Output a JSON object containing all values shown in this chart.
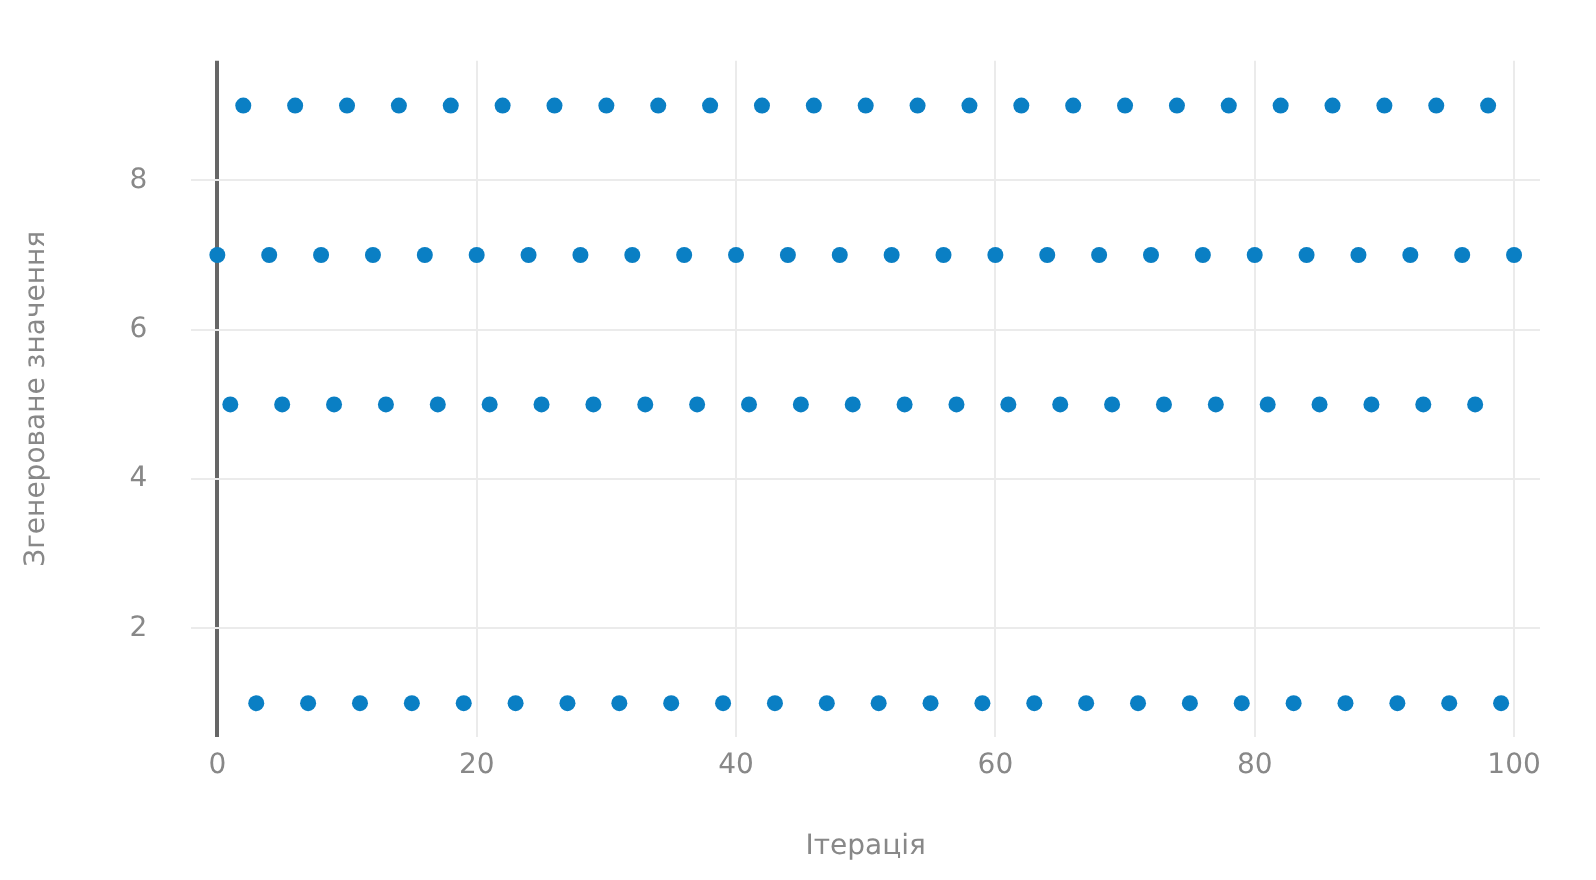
{
  "chart_data": {
    "type": "scatter",
    "xlabel": "Ітерація",
    "ylabel": "Згенероване значення",
    "x": [
      0,
      1,
      2,
      3,
      4,
      5,
      6,
      7,
      8,
      9,
      10,
      11,
      12,
      13,
      14,
      15,
      16,
      17,
      18,
      19,
      20,
      21,
      22,
      23,
      24,
      25,
      26,
      27,
      28,
      29,
      30,
      31,
      32,
      33,
      34,
      35,
      36,
      37,
      38,
      39,
      40,
      41,
      42,
      43,
      44,
      45,
      46,
      47,
      48,
      49,
      50,
      51,
      52,
      53,
      54,
      55,
      56,
      57,
      58,
      59,
      60,
      61,
      62,
      63,
      64,
      65,
      66,
      67,
      68,
      69,
      70,
      71,
      72,
      73,
      74,
      75,
      76,
      77,
      78,
      79,
      80,
      81,
      82,
      83,
      84,
      85,
      86,
      87,
      88,
      89,
      90,
      91,
      92,
      93,
      94,
      95,
      96,
      97,
      98,
      99,
      100
    ],
    "series": [
      {
        "color": "#0a7fc4",
        "values": [
          7,
          5,
          9,
          1,
          7,
          5,
          9,
          1,
          7,
          5,
          9,
          1,
          7,
          5,
          9,
          1,
          7,
          5,
          9,
          1,
          7,
          5,
          9,
          1,
          7,
          5,
          9,
          1,
          7,
          5,
          9,
          1,
          7,
          5,
          9,
          1,
          7,
          5,
          9,
          1,
          7,
          5,
          9,
          1,
          7,
          5,
          9,
          1,
          7,
          5,
          9,
          1,
          7,
          5,
          9,
          1,
          7,
          5,
          9,
          1,
          7,
          5,
          9,
          1,
          7,
          5,
          9,
          1,
          7,
          5,
          9,
          1,
          7,
          5,
          9,
          1,
          7,
          5,
          9,
          1,
          7,
          5,
          9,
          1,
          7,
          5,
          9,
          1,
          7,
          5,
          9,
          1,
          7,
          5,
          9,
          1,
          7,
          5,
          9,
          1,
          7
        ]
      }
    ],
    "xlim": [
      -2,
      102
    ],
    "xticks": [
      0,
      20,
      40,
      60,
      80,
      100
    ],
    "ylim": [
      0.55,
      9.6
    ],
    "yticks": [
      2,
      4,
      6,
      8
    ],
    "grid": true,
    "legend": false,
    "marker": "circle"
  }
}
